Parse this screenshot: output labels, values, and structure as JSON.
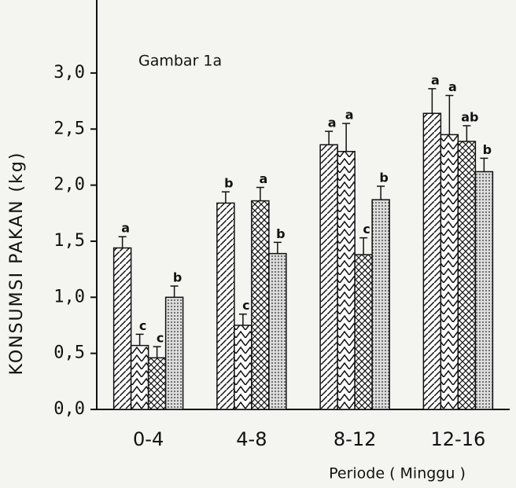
{
  "chart_data": {
    "type": "bar",
    "annotation": "Gambar 1a",
    "ylabel": "KONSUMSI PAKAN (kg)",
    "xlabel": "Periode ( Minggu )",
    "categories": [
      "0-4",
      "4-8",
      "8-12",
      "12-16"
    ],
    "series": [
      {
        "pattern": "hatch",
        "values": [
          1.44,
          1.84,
          2.36,
          2.64
        ],
        "errors": [
          0.1,
          0.1,
          0.12,
          0.22
        ],
        "value_labels": [
          "a",
          "b",
          "a",
          "a"
        ]
      },
      {
        "pattern": "chevron",
        "values": [
          0.57,
          0.75,
          2.3,
          2.45
        ],
        "errors": [
          0.1,
          0.1,
          0.25,
          0.35
        ],
        "value_labels": [
          "c",
          "c",
          "a",
          "a"
        ]
      },
      {
        "pattern": "cross",
        "values": [
          0.46,
          1.86,
          1.38,
          2.39
        ],
        "errors": [
          0.1,
          0.12,
          0.15,
          0.14
        ],
        "value_labels": [
          "c",
          "a",
          "c",
          "ab"
        ]
      },
      {
        "pattern": "dots",
        "values": [
          1.0,
          1.39,
          1.87,
          2.12
        ],
        "errors": [
          0.1,
          0.1,
          0.12,
          0.12
        ],
        "value_labels": [
          "b",
          "b",
          "b",
          "b"
        ]
      }
    ],
    "ylim": [
      0,
      3.2
    ],
    "yticks": [
      {
        "value": 0,
        "label": "0,0"
      },
      {
        "value": 0.5,
        "label": "0,5"
      },
      {
        "value": 1,
        "label": "1,0"
      },
      {
        "value": 1.5,
        "label": "1,5"
      },
      {
        "value": 2,
        "label": "2,0"
      },
      {
        "value": 2.5,
        "label": "2,5"
      },
      {
        "value": 3,
        "label": "3,0"
      }
    ]
  }
}
